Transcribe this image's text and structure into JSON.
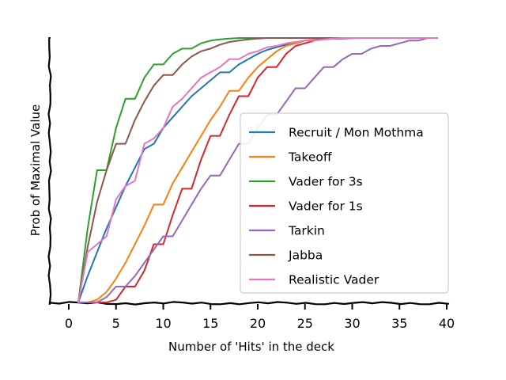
{
  "chart_data": {
    "type": "line",
    "xlabel": "Number of 'Hits' in the deck",
    "ylabel": "Prob of Maximal Value",
    "xlim": [
      -2,
      41
    ],
    "ylim": [
      0,
      1.0
    ],
    "xticks": [
      0,
      5,
      10,
      15,
      20,
      25,
      30,
      35,
      40
    ],
    "y_tick_labels_shown": false,
    "grid": false,
    "legend_position": "center-right",
    "series": [
      {
        "name": "Recruit / Mon Mothma",
        "color": "#1f77b4",
        "x": [
          1,
          2,
          3,
          4,
          5,
          6,
          7,
          8,
          9,
          10,
          11,
          12,
          13,
          14,
          15,
          16,
          17,
          18,
          19,
          20,
          21,
          22,
          23,
          24,
          25,
          26,
          27,
          28,
          29,
          30,
          31,
          32,
          33,
          34,
          35,
          36,
          37,
          38,
          39
        ],
        "y": [
          0.0,
          0.1,
          0.19,
          0.28,
          0.36,
          0.44,
          0.51,
          0.58,
          0.6,
          0.66,
          0.7,
          0.74,
          0.78,
          0.81,
          0.84,
          0.87,
          0.87,
          0.9,
          0.92,
          0.94,
          0.955,
          0.965,
          0.975,
          0.98,
          0.99,
          0.993,
          0.995,
          0.997,
          0.998,
          0.999,
          1,
          1,
          1,
          1,
          1,
          1,
          1,
          1,
          1
        ]
      },
      {
        "name": "Takeoff",
        "color": "#ff7f0e",
        "x": [
          1,
          2,
          3,
          4,
          5,
          6,
          7,
          8,
          9,
          10,
          11,
          12,
          13,
          14,
          15,
          16,
          17,
          18,
          19,
          20,
          21,
          22,
          23,
          24,
          25,
          26,
          27,
          28,
          29,
          30,
          31,
          32,
          33,
          34,
          35,
          36,
          37,
          38,
          39
        ],
        "y": [
          0.0,
          0.0,
          0.01,
          0.04,
          0.09,
          0.15,
          0.22,
          0.29,
          0.37,
          0.37,
          0.45,
          0.51,
          0.57,
          0.63,
          0.69,
          0.74,
          0.8,
          0.8,
          0.85,
          0.89,
          0.92,
          0.95,
          0.97,
          0.98,
          0.99,
          0.995,
          0.998,
          1,
          1,
          1,
          1,
          1,
          1,
          1,
          1,
          1,
          1,
          1,
          1
        ]
      },
      {
        "name": "Vader for 3s",
        "color": "#2ca02c",
        "x": [
          1,
          2,
          3,
          4,
          5,
          6,
          7,
          8,
          9,
          10,
          11,
          12,
          13,
          14,
          15,
          16,
          17,
          18,
          19,
          20,
          21,
          22,
          23,
          24,
          25,
          26,
          27,
          28,
          29,
          30,
          31,
          32,
          33,
          34,
          35,
          36,
          37,
          38,
          39
        ],
        "y": [
          0.0,
          0.28,
          0.5,
          0.5,
          0.66,
          0.77,
          0.77,
          0.85,
          0.9,
          0.9,
          0.94,
          0.96,
          0.96,
          0.98,
          0.99,
          0.995,
          0.998,
          1,
          1,
          1,
          1,
          1,
          1,
          1,
          1,
          1,
          1,
          1,
          1,
          1,
          1,
          1,
          1,
          1,
          1,
          1,
          1,
          1,
          1
        ]
      },
      {
        "name": "Vader for 1s",
        "color": "#d62728",
        "x": [
          1,
          2,
          3,
          4,
          5,
          6,
          7,
          8,
          9,
          10,
          11,
          12,
          13,
          14,
          15,
          16,
          17,
          18,
          19,
          20,
          21,
          22,
          23,
          24,
          25,
          26,
          27,
          28,
          29,
          30,
          31,
          32,
          33,
          34,
          35,
          36,
          37,
          38,
          39
        ],
        "y": [
          0.0,
          0.0,
          0.0,
          0.0,
          0.01,
          0.06,
          0.06,
          0.12,
          0.22,
          0.22,
          0.33,
          0.43,
          0.43,
          0.54,
          0.63,
          0.63,
          0.71,
          0.78,
          0.78,
          0.85,
          0.89,
          0.89,
          0.94,
          0.97,
          0.98,
          0.99,
          1,
          1,
          1,
          1,
          1,
          1,
          1,
          1,
          1,
          1,
          1,
          1,
          1
        ]
      },
      {
        "name": "Tarkin",
        "color": "#9467bd",
        "x": [
          1,
          2,
          3,
          4,
          5,
          6,
          7,
          8,
          9,
          10,
          11,
          12,
          13,
          14,
          15,
          16,
          17,
          18,
          19,
          20,
          21,
          22,
          23,
          24,
          25,
          26,
          27,
          28,
          29,
          30,
          31,
          32,
          33,
          34,
          35,
          36,
          37,
          38,
          39
        ],
        "y": [
          0.0,
          0.0,
          0.0,
          0.02,
          0.06,
          0.06,
          0.1,
          0.15,
          0.2,
          0.25,
          0.25,
          0.31,
          0.37,
          0.43,
          0.48,
          0.48,
          0.54,
          0.6,
          0.6,
          0.66,
          0.71,
          0.71,
          0.76,
          0.81,
          0.81,
          0.85,
          0.89,
          0.89,
          0.92,
          0.94,
          0.94,
          0.96,
          0.97,
          0.97,
          0.98,
          0.99,
          0.99,
          1,
          1
        ]
      },
      {
        "name": "Jabba",
        "color": "#8c564b",
        "x": [
          1,
          2,
          3,
          4,
          5,
          6,
          7,
          8,
          9,
          10,
          11,
          12,
          13,
          14,
          15,
          16,
          17,
          18,
          19,
          20,
          21,
          22,
          23,
          24,
          25,
          26,
          27,
          28,
          29,
          30,
          31,
          32,
          33,
          34,
          35,
          36,
          37,
          38,
          39
        ],
        "y": [
          0.0,
          0.21,
          0.38,
          0.5,
          0.6,
          0.6,
          0.69,
          0.76,
          0.82,
          0.86,
          0.86,
          0.9,
          0.93,
          0.95,
          0.96,
          0.975,
          0.985,
          0.99,
          0.995,
          0.998,
          1,
          1,
          1,
          1,
          1,
          1,
          1,
          1,
          1,
          1,
          1,
          1,
          1,
          1,
          1,
          1,
          1,
          1,
          1
        ]
      },
      {
        "name": "Realistic Vader",
        "color": "#e377c2",
        "x": [
          1,
          2,
          3,
          4,
          5,
          6,
          7,
          8,
          9,
          10,
          11,
          12,
          13,
          14,
          15,
          16,
          17,
          18,
          19,
          20,
          21,
          22,
          23,
          24,
          25,
          26,
          27,
          28,
          29,
          30,
          31,
          32,
          33,
          34,
          35,
          36,
          37,
          38,
          39
        ],
        "y": [
          0.0,
          0.19,
          0.22,
          0.25,
          0.39,
          0.44,
          0.46,
          0.6,
          0.62,
          0.66,
          0.74,
          0.77,
          0.81,
          0.85,
          0.87,
          0.89,
          0.92,
          0.92,
          0.94,
          0.95,
          0.965,
          0.97,
          0.98,
          0.985,
          0.99,
          0.99,
          0.995,
          0.998,
          1,
          1,
          1,
          1,
          1,
          1,
          1,
          1,
          1,
          1,
          1
        ]
      }
    ]
  }
}
